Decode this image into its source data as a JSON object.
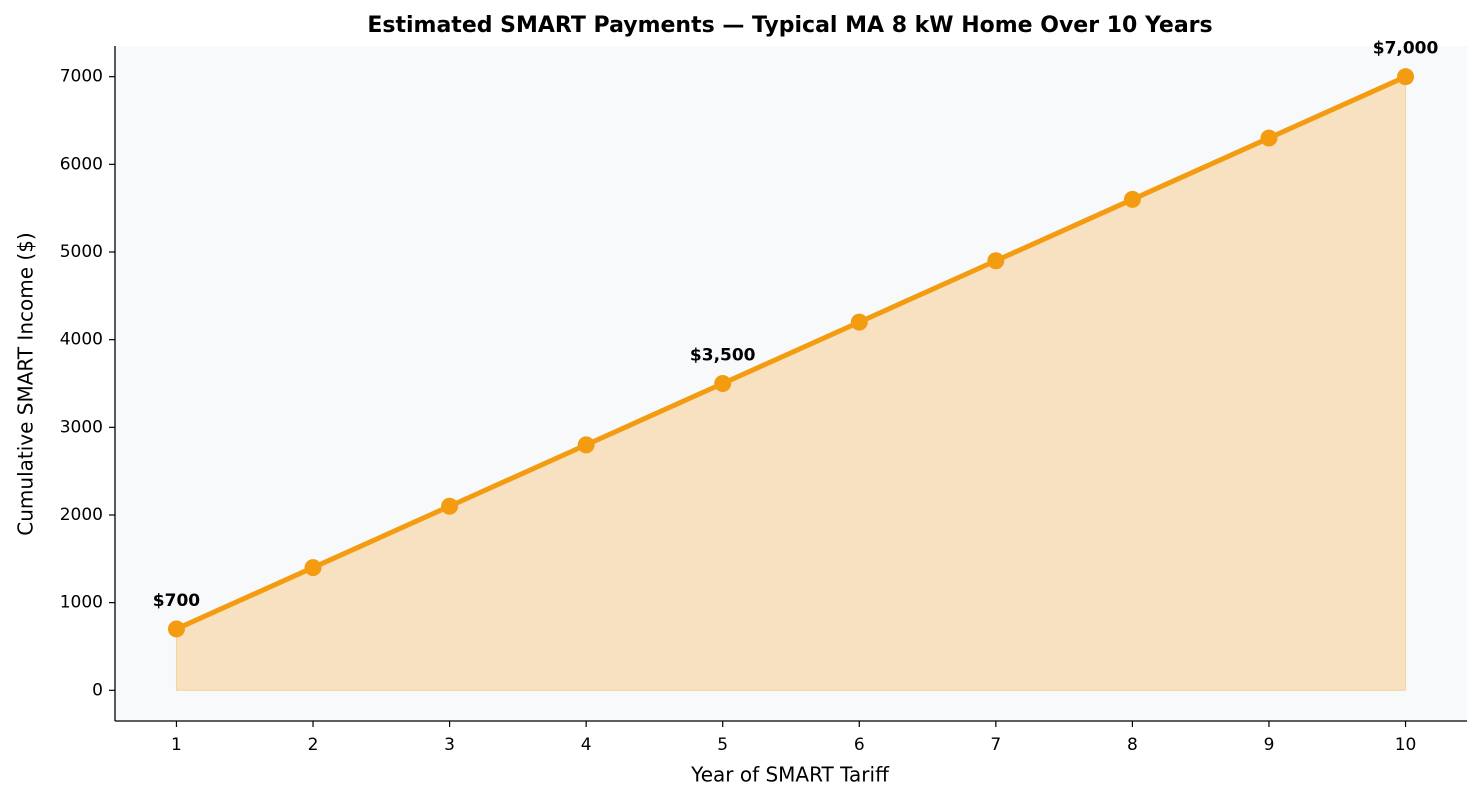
{
  "chart_data": {
    "type": "line",
    "title": "Estimated SMART Payments — Typical MA 8 kW Home Over 10 Years",
    "x_label": "Year of SMART Tariff",
    "y_label": "Cumulative SMART Income ($)",
    "x": [
      1,
      2,
      3,
      4,
      5,
      6,
      7,
      8,
      9,
      10
    ],
    "series": [
      {
        "name": "Cumulative SMART Income",
        "color": "#f39c12",
        "values": [
          700,
          1400,
          2100,
          2800,
          3500,
          4200,
          4900,
          5600,
          6300,
          7000
        ],
        "value_labels": [
          "$700",
          null,
          null,
          null,
          "$3,500",
          null,
          null,
          null,
          null,
          "$7,000"
        ]
      }
    ],
    "fill": true,
    "xlim": [
      0.55,
      10.45
    ],
    "xticks": [
      1,
      2,
      3,
      4,
      5,
      6,
      7,
      8,
      9,
      10
    ],
    "ylim": [
      -350,
      7350
    ],
    "yticks": [
      0,
      1000,
      2000,
      3000,
      4000,
      5000,
      6000,
      7000
    ],
    "grid": false
  }
}
